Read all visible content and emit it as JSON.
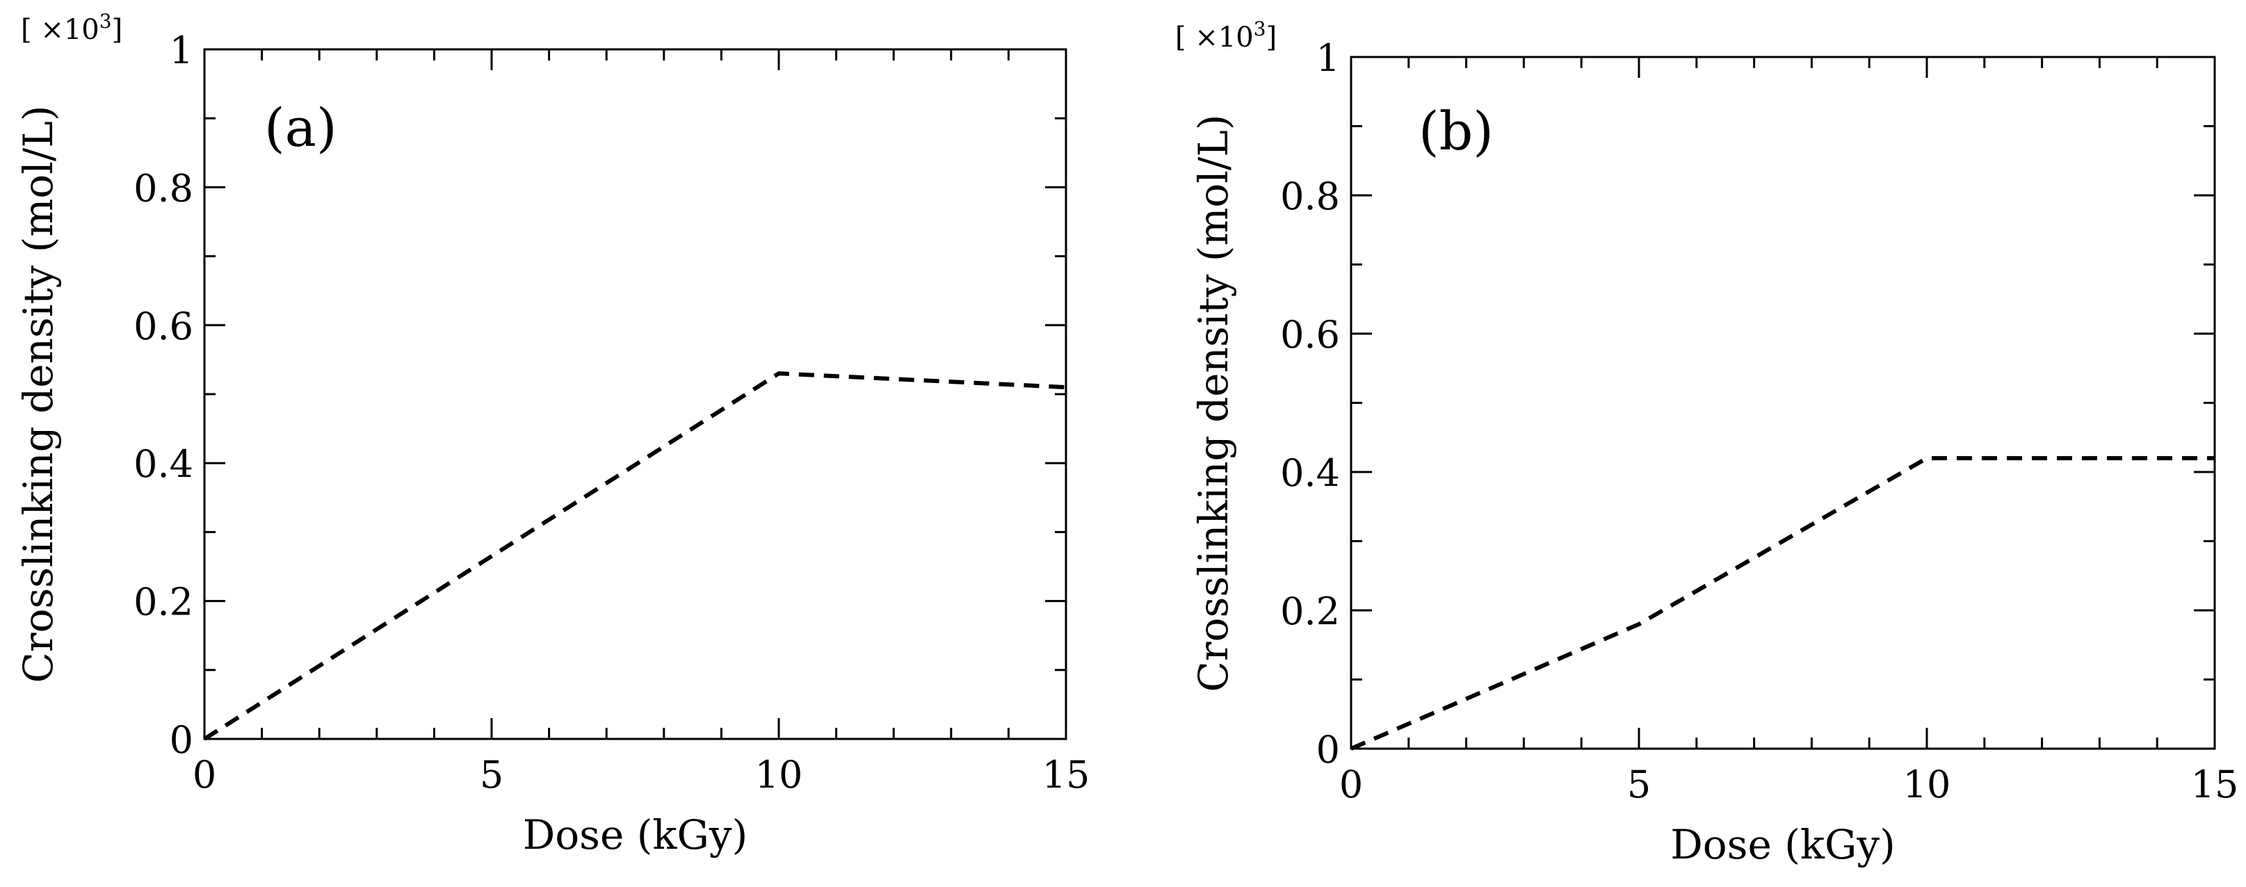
{
  "chart_data": [
    {
      "type": "line",
      "panel_label": "(a)",
      "xlabel": "Dose (kGy)",
      "ylabel": "Crosslinking density (mol/L)",
      "y_scale_note": {
        "prefix": "[ ×10",
        "exponent": "3",
        "suffix": "]"
      },
      "xlim": [
        0,
        15
      ],
      "ylim": [
        0,
        1
      ],
      "x_ticks": [
        0,
        5,
        10,
        15
      ],
      "x_tick_labels": [
        "0",
        "5",
        "10",
        "15"
      ],
      "y_ticks": [
        0,
        0.2,
        0.4,
        0.6,
        0.8,
        1
      ],
      "y_tick_labels": [
        "0",
        "0.2",
        "0.4",
        "0.6",
        "0.8",
        "1"
      ],
      "x_minor_step": 1,
      "y_minor_step": 0.1,
      "grid": false,
      "series": [
        {
          "line_style": "dashed",
          "x": [
            0,
            10,
            15
          ],
          "y": [
            0,
            0.53,
            0.51
          ]
        }
      ]
    },
    {
      "type": "line",
      "panel_label": "(b)",
      "xlabel": "Dose (kGy)",
      "ylabel": "Crosslinking density (mol/L)",
      "y_scale_note": {
        "prefix": "[ ×10",
        "exponent": "3",
        "suffix": "]"
      },
      "xlim": [
        0,
        15
      ],
      "ylim": [
        0,
        1
      ],
      "x_ticks": [
        0,
        5,
        10,
        15
      ],
      "x_tick_labels": [
        "0",
        "5",
        "10",
        "15"
      ],
      "y_ticks": [
        0,
        0.2,
        0.4,
        0.6,
        0.8,
        1
      ],
      "y_tick_labels": [
        "0",
        "0.2",
        "0.4",
        "0.6",
        "0.8",
        "1"
      ],
      "x_minor_step": 1,
      "y_minor_step": 0.1,
      "grid": false,
      "series": [
        {
          "line_style": "dashed",
          "x": [
            0,
            5,
            10,
            15
          ],
          "y": [
            0,
            0.18,
            0.42,
            0.42
          ]
        }
      ]
    }
  ]
}
